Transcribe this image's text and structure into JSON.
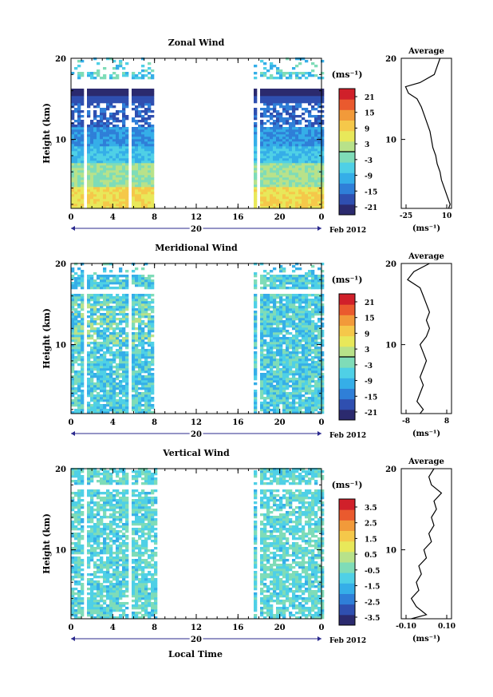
{
  "panels": [
    {
      "title": "Zonal Wind",
      "ylabel": "Height (km)",
      "yticks": [
        "20",
        "10"
      ],
      "xticks": [
        "0",
        "4",
        "8",
        "12",
        "16",
        "20",
        "0"
      ],
      "day": "20",
      "month": "Feb 2012",
      "unit": "(ms⁻¹)",
      "colorbar_ticks": [
        "21",
        "15",
        "9",
        "3",
        "-3",
        "-9",
        "-15",
        "-21"
      ],
      "profile": {
        "title": "Average",
        "yticks": [
          "20",
          "10"
        ],
        "xticks": [
          "-25",
          "10"
        ],
        "unit": "(ms⁻¹)"
      }
    },
    {
      "title": "Meridional Wind",
      "ylabel": "Height (km)",
      "yticks": [
        "20",
        "10"
      ],
      "xticks": [
        "0",
        "4",
        "8",
        "12",
        "16",
        "20",
        "0"
      ],
      "day": "20",
      "month": "Feb 2012",
      "unit": "(ms⁻¹)",
      "colorbar_ticks": [
        "21",
        "15",
        "9",
        "3",
        "-3",
        "-9",
        "-15",
        "-21"
      ],
      "profile": {
        "title": "Average",
        "yticks": [
          "20",
          "10"
        ],
        "xticks": [
          "-8",
          "8"
        ],
        "unit": "(ms⁻¹)"
      }
    },
    {
      "title": "Vertical Wind",
      "ylabel": "Height (km)",
      "yticks": [
        "20",
        "10"
      ],
      "xticks": [
        "0",
        "4",
        "8",
        "12",
        "16",
        "20",
        "0"
      ],
      "day": "20",
      "month": "Feb 2012",
      "unit": "(ms⁻¹)",
      "colorbar_ticks": [
        "3.5",
        "2.5",
        "1.5",
        "0.5",
        "-0.5",
        "-1.5",
        "-2.5",
        "-3.5"
      ],
      "profile": {
        "title": "Average",
        "yticks": [
          "20",
          "10"
        ],
        "xticks": [
          "-0.10",
          "0.10"
        ],
        "unit": "(ms⁻¹)"
      }
    }
  ],
  "xlabel": "Local Time",
  "colors": {
    "scale": [
      "#2b2a6e",
      "#2f4fb0",
      "#2f7fd8",
      "#35aee8",
      "#4fd0e6",
      "#7fdcb8",
      "#b8e28a",
      "#e8e85a",
      "#f5c84a",
      "#f29a3a",
      "#ea5a2e",
      "#d0202a"
    ]
  },
  "chart_data": [
    {
      "type": "heatmap",
      "title": "Zonal Wind",
      "xlabel": "",
      "ylabel": "Height (km)",
      "xlim": [
        0,
        24
      ],
      "ylim": [
        1.5,
        20
      ],
      "x_ticks": [
        0,
        4,
        8,
        12,
        16,
        20,
        24
      ],
      "colorbar": {
        "unit": "(ms⁻¹)",
        "range": [
          -21,
          21
        ]
      },
      "data_time_ranges": [
        [
          0,
          8
        ],
        [
          17.5,
          24
        ]
      ],
      "profile": {
        "title": "Average",
        "xlim": [
          -25,
          10
        ],
        "ylim": [
          1.5,
          20
        ],
        "z": [
          1.5,
          2,
          3,
          4,
          5,
          6,
          7,
          8,
          9,
          10,
          11,
          12,
          13,
          14,
          15,
          15.7,
          16.5,
          17,
          18,
          19,
          20
        ],
        "u": [
          8,
          9,
          7,
          5,
          3,
          2,
          0,
          -1,
          -3,
          -4,
          -5,
          -7,
          -9,
          -11,
          -14,
          -20,
          -22,
          -12,
          -2,
          0,
          2
        ]
      }
    },
    {
      "type": "heatmap",
      "title": "Meridional Wind",
      "xlabel": "",
      "ylabel": "Height (km)",
      "xlim": [
        0,
        24
      ],
      "ylim": [
        1.5,
        20
      ],
      "x_ticks": [
        0,
        4,
        8,
        12,
        16,
        20,
        24
      ],
      "colorbar": {
        "unit": "(ms⁻¹)",
        "range": [
          -21,
          21
        ]
      },
      "data_time_ranges": [
        [
          0,
          8
        ],
        [
          17.5,
          24
        ]
      ],
      "profile": {
        "title": "Average",
        "xlim": [
          -8,
          8
        ],
        "ylim": [
          1.5,
          20
        ],
        "z": [
          1.5,
          2,
          3,
          4,
          5,
          6,
          7,
          8,
          9,
          10,
          11,
          12,
          13,
          14,
          15,
          16,
          17,
          18,
          19,
          20
        ],
        "v": [
          -2,
          -1,
          -3,
          -2,
          -1,
          -2,
          -1,
          0,
          -1,
          -2,
          0,
          1,
          0,
          1,
          0,
          -1,
          -2,
          -6,
          -4,
          1
        ]
      }
    },
    {
      "type": "heatmap",
      "title": "Vertical Wind",
      "xlabel": "Local Time",
      "ylabel": "Height (km)",
      "xlim": [
        0,
        24
      ],
      "ylim": [
        1.5,
        20
      ],
      "x_ticks": [
        0,
        4,
        8,
        12,
        16,
        20,
        24
      ],
      "colorbar": {
        "unit": "(ms⁻¹)",
        "range": [
          -3.5,
          3.5
        ]
      },
      "data_time_ranges": [
        [
          0,
          8
        ],
        [
          17.5,
          24
        ]
      ],
      "profile": {
        "title": "Average",
        "xlim": [
          -0.1,
          0.1
        ],
        "ylim": [
          1.5,
          20
        ],
        "z": [
          1.5,
          2,
          3,
          4,
          5,
          6,
          7,
          8,
          9,
          10,
          11,
          12,
          13,
          14,
          15,
          16,
          17,
          18,
          19,
          20
        ],
        "w": [
          -0.06,
          0.0,
          -0.04,
          -0.06,
          -0.03,
          -0.04,
          -0.02,
          -0.03,
          0.0,
          -0.01,
          0.02,
          0.01,
          0.03,
          0.02,
          0.04,
          0.03,
          0.06,
          0.02,
          0.01,
          0.03
        ]
      }
    }
  ]
}
